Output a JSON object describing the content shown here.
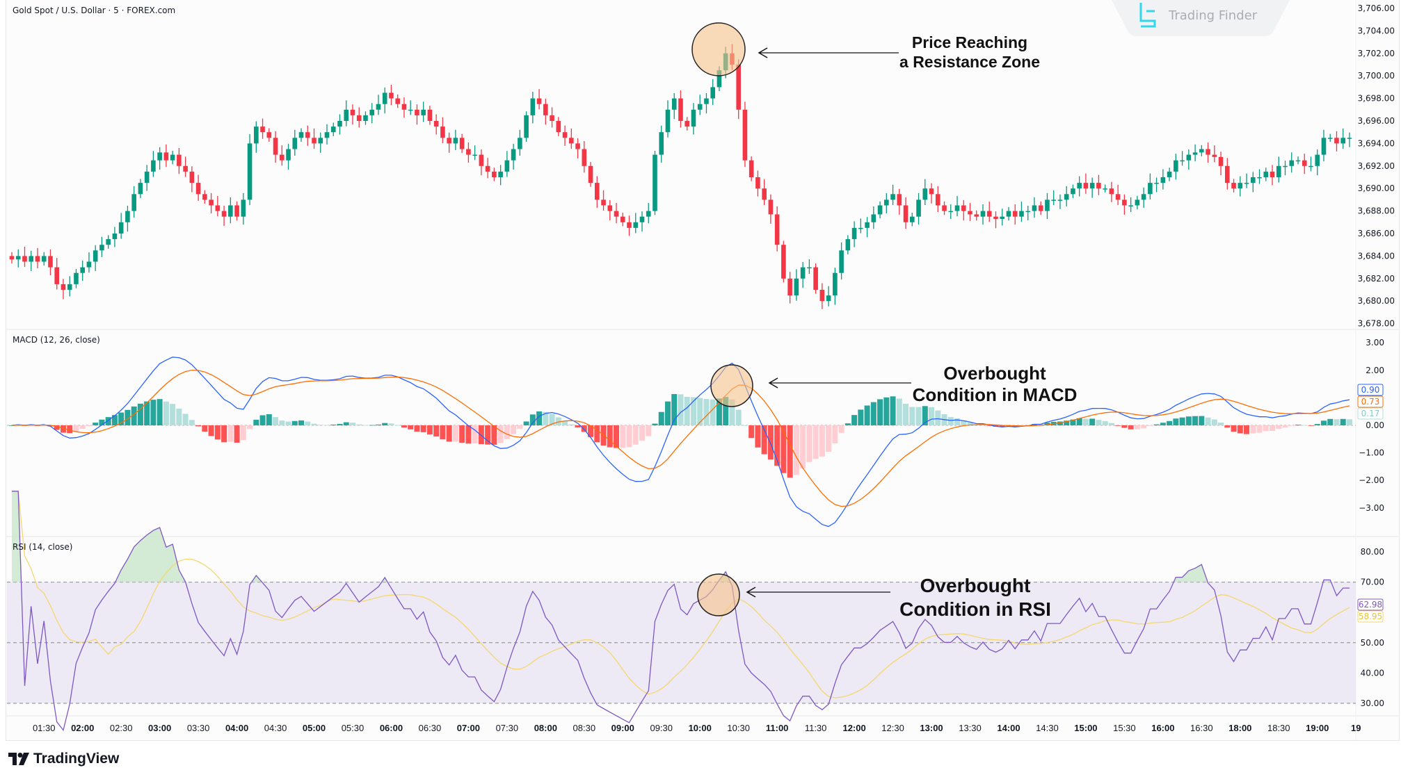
{
  "header": {
    "symbol_title": "Gold Spot / U.S. Dollar · 5 · FOREX.com"
  },
  "watermark": {
    "text": "Trading Finder",
    "accent": "#34d6ea"
  },
  "footer": {
    "brand": "TradingView"
  },
  "annotations": {
    "price": {
      "line1": "Price Reaching",
      "line2": "a Resistance Zone"
    },
    "macd": {
      "line1": "Overbought",
      "line2": "Condition in MACD"
    },
    "rsi": {
      "line1": "Overbought",
      "line2": "Condition in RSI"
    }
  },
  "colors": {
    "up": "#089981",
    "down": "#f23645",
    "macd": "#2962ff",
    "signal": "#ff6d00",
    "hist_up_grow": "#26a69a",
    "hist_up_fall": "#b2dfdb",
    "hist_dn_grow": "#ff5252",
    "hist_dn_fall": "#ffcdd2",
    "rsi": "#7e57c2",
    "rsi_ma": "#f5d76e",
    "rsi_band": "#ede9f5",
    "circle": "#f5c18a"
  },
  "chart_data": [
    {
      "type": "candlestick",
      "title": "Gold Spot / U.S. Dollar · 5 · FOREX.com",
      "ylim": [
        3677,
        3707
      ],
      "y_ticks": [
        "3,706.00",
        "3,704.00",
        "3,702.00",
        "3,700.00",
        "3,698.00",
        "3,696.00",
        "3,694.00",
        "3,692.00",
        "3,690.00",
        "3,688.00",
        "3,686.00",
        "3,684.00",
        "3,682.00",
        "3,680.00",
        "3,678.00"
      ],
      "y_tick_values": [
        3706,
        3704,
        3702,
        3700,
        3698,
        3696,
        3694,
        3692,
        3690,
        3688,
        3686,
        3684,
        3682,
        3680,
        3678
      ],
      "first_open": 3684,
      "close": [
        3683.7,
        3684,
        3683.5,
        3684,
        3683.5,
        3684,
        3683,
        3681.5,
        3681,
        3681.5,
        3682.5,
        3683,
        3683.5,
        3684.5,
        3685,
        3685.5,
        3686,
        3687,
        3688,
        3689.5,
        3690.5,
        3691.5,
        3692.5,
        3693.2,
        3692.5,
        3693,
        3692,
        3691.5,
        3690.5,
        3689.5,
        3689,
        3688.5,
        3688,
        3687.5,
        3688.5,
        3687.5,
        3689,
        3694,
        3695.5,
        3695,
        3694.5,
        3693,
        3692.5,
        3693.5,
        3694.5,
        3695,
        3694.5,
        3694,
        3694.5,
        3695,
        3695.5,
        3696,
        3697,
        3696.5,
        3696,
        3696.5,
        3697,
        3697.5,
        3698.5,
        3698,
        3697.5,
        3697,
        3697,
        3696.5,
        3697,
        3696,
        3695.5,
        3694.5,
        3694,
        3694.5,
        3693.5,
        3693,
        3693,
        3692,
        3691.5,
        3691,
        3691.5,
        3692.5,
        3693.5,
        3694.5,
        3696.5,
        3698,
        3697.5,
        3696.5,
        3696,
        3695,
        3694.5,
        3694,
        3693.5,
        3692,
        3690.5,
        3689,
        3688.5,
        3688,
        3687.5,
        3687,
        3686.5,
        3687,
        3687.5,
        3688,
        3693,
        3695,
        3697,
        3698,
        3696,
        3695.5,
        3697,
        3697.5,
        3698,
        3699,
        3700.5,
        3702,
        3701,
        3697,
        3692.5,
        3691,
        3690,
        3689,
        3687.7,
        3685,
        3682,
        3680.5,
        3682,
        3683,
        3683,
        3681,
        3680,
        3680.5,
        3682.5,
        3684.5,
        3685.5,
        3686.5,
        3686.5,
        3687,
        3687.7,
        3688.5,
        3689,
        3689.5,
        3688.5,
        3687,
        3687.5,
        3689,
        3690,
        3689.5,
        3688.5,
        3688,
        3688,
        3688.5,
        3688,
        3687.7,
        3687.5,
        3688,
        3687.5,
        3687.3,
        3687.5,
        3688,
        3687.5,
        3688,
        3688,
        3688.5,
        3688,
        3689,
        3689,
        3689,
        3689.5,
        3690,
        3690.5,
        3690,
        3690.5,
        3690,
        3690,
        3689.5,
        3689,
        3688.5,
        3688.5,
        3689,
        3689.5,
        3690.5,
        3690.5,
        3691,
        3691.5,
        3692.5,
        3692.5,
        3693,
        3693.2,
        3693.5,
        3693,
        3692.8,
        3692,
        3690.5,
        3690,
        3690.5,
        3690.5,
        3691,
        3691,
        3691.5,
        3691,
        3692,
        3692,
        3692.5,
        3692.5,
        3692,
        3692,
        3693,
        3694.5,
        3694.5,
        3694,
        3694.5,
        3694.5
      ],
      "x_ticks": [
        "01:30",
        "02:00",
        "02:30",
        "03:00",
        "03:30",
        "04:00",
        "04:30",
        "05:00",
        "05:30",
        "06:00",
        "06:30",
        "07:00",
        "07:30",
        "08:00",
        "08:30",
        "09:00",
        "09:30",
        "10:00",
        "10:30",
        "11:00",
        "11:30",
        "12:00",
        "12:30",
        "13:00",
        "13:30",
        "14:00",
        "14:30",
        "15:00",
        "15:30",
        "16:00",
        "16:30",
        "18:00",
        "18:30",
        "19:00",
        "19"
      ]
    },
    {
      "type": "line",
      "title": "MACD (12, 26, close)",
      "params": {
        "fast": 12,
        "slow": 26,
        "signal": 9
      },
      "ylim": [
        -3.8,
        3.6
      ],
      "y_ticks": [
        "3.00",
        "2.00",
        "0.00",
        "−1.00",
        "−2.00",
        "−3.00"
      ],
      "y_tick_values": [
        3,
        2,
        0,
        -1,
        -2,
        -3
      ],
      "last_values": {
        "macd": "0.90",
        "signal": "0.73",
        "histogram": "0.17"
      }
    },
    {
      "type": "line",
      "title": "RSI (14, close)",
      "params": {
        "length": 14,
        "ma_length": 14
      },
      "ylim": [
        27,
        83
      ],
      "y_ticks": [
        "80.00",
        "70.00",
        "50.00",
        "40.00",
        "30.00"
      ],
      "y_tick_values": [
        80,
        70,
        50,
        40,
        30
      ],
      "band": [
        30,
        70
      ],
      "last_values": {
        "rsi": "62.98",
        "rsi_ma": "58.95"
      }
    }
  ]
}
